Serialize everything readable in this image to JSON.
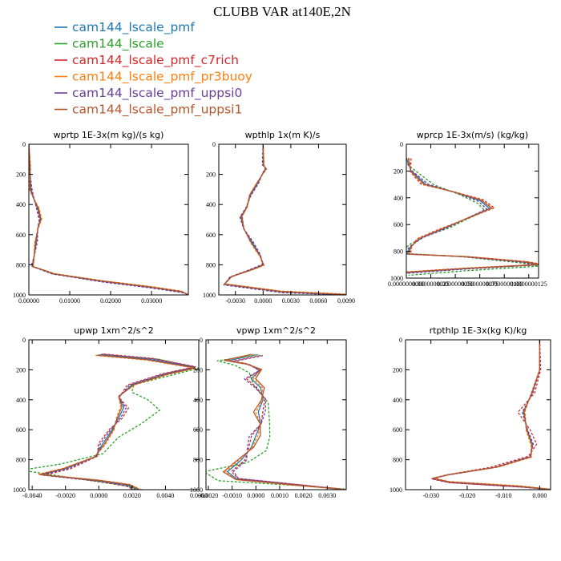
{
  "title": "CLUBB VAR at140E,2N",
  "series": [
    {
      "name": "cam144_lscale_pmf",
      "color": "#1f77b4",
      "dash": false
    },
    {
      "name": "cam144_lscale",
      "color": "#2ca02c",
      "dash": true
    },
    {
      "name": "cam144_lscale_pmf_c7rich",
      "color": "#d62728",
      "dash": true
    },
    {
      "name": "cam144_lscale_pmf_pr3buoy",
      "color": "#ff7f0e",
      "dash": true
    },
    {
      "name": "cam144_lscale_pmf_uppsi0",
      "color": "#6a3d9a",
      "dash": true
    },
    {
      "name": "cam144_lscale_pmf_uppsi1",
      "color": "#b5562b",
      "dash": false
    }
  ],
  "chart_data": [
    {
      "type": "line",
      "title": "wprtp  1E-3x(m kg)/(s kg)",
      "xlim": [
        0,
        0.039
      ],
      "ylim": [
        1000,
        0
      ],
      "y_inverted": true,
      "xticks": [
        0,
        0.01,
        0.02,
        0.03
      ],
      "xticklabels": [
        "0.00000",
        "0.01000",
        "0.02000",
        "0.03000"
      ],
      "yticks": [
        0,
        200,
        400,
        600,
        800,
        1000
      ],
      "profile": [
        [
          0,
          0
        ],
        [
          0.0002,
          150
        ],
        [
          0.0005,
          300
        ],
        [
          0.0012,
          360
        ],
        [
          0.0022,
          430
        ],
        [
          0.0028,
          500
        ],
        [
          0.0022,
          560
        ],
        [
          0.0018,
          650
        ],
        [
          0.0012,
          760
        ],
        [
          0.0008,
          810
        ],
        [
          0.006,
          860
        ],
        [
          0.018,
          910
        ],
        [
          0.03,
          950
        ],
        [
          0.0375,
          980
        ],
        [
          0.039,
          1000
        ]
      ],
      "perturb": [
        [
          0,
          0,
          0
        ],
        [
          0.0003,
          4,
          0
        ],
        [
          -0.0002,
          -3,
          0
        ],
        [
          0.0004,
          6,
          0
        ],
        [
          -0.0003,
          -5,
          0
        ],
        [
          0.0002,
          3,
          0
        ]
      ]
    },
    {
      "type": "line",
      "title": "wpthlp  1x(m K)/s",
      "xlim": [
        -0.0048,
        0.009
      ],
      "ylim": [
        1000,
        0
      ],
      "y_inverted": true,
      "xticks": [
        -0.003,
        0,
        0.003,
        0.006,
        0.009
      ],
      "xticklabels": [
        "-0.0030",
        "0.0000",
        "0.0030",
        "0.0060",
        "0.0090"
      ],
      "yticks": [
        0,
        200,
        400,
        600,
        800,
        1000
      ],
      "profile": [
        [
          0,
          0
        ],
        [
          0,
          140
        ],
        [
          0.0003,
          160
        ],
        [
          0,
          190
        ],
        [
          -0.0006,
          260
        ],
        [
          -0.0014,
          340
        ],
        [
          -0.0018,
          420
        ],
        [
          -0.0024,
          480
        ],
        [
          -0.0021,
          560
        ],
        [
          -0.0012,
          650
        ],
        [
          -0.0003,
          740
        ],
        [
          0,
          800
        ],
        [
          -0.0012,
          830
        ],
        [
          -0.0035,
          880
        ],
        [
          -0.0042,
          930
        ],
        [
          0.002,
          980
        ],
        [
          0.009,
          1000
        ]
      ],
      "perturb": [
        [
          0,
          0,
          0
        ],
        [
          0.0001,
          4,
          0
        ],
        [
          -0.0001,
          -3,
          0
        ],
        [
          0.00015,
          6,
          0
        ],
        [
          -0.0001,
          -5,
          0
        ],
        [
          0.0001,
          3,
          0
        ]
      ]
    },
    {
      "type": "line",
      "title": "wprcp  1E-3x(m/s) (kg/kg)",
      "xlim": [
        0,
        1.35e-08
      ],
      "ylim": [
        1000,
        0
      ],
      "y_inverted": true,
      "xticks": [
        0,
        2.5e-09,
        5e-09,
        7.5e-09,
        1e-08,
        1.25e-08
      ],
      "xticklabels": [
        "0.0000000000",
        "0.0000000025",
        "0.0000000050",
        "0.0000000075",
        "0.0000000100",
        "0.0000000125"
      ],
      "yticks": [
        0,
        200,
        400,
        600,
        800,
        1000
      ],
      "profile": [
        [
          0,
          100
        ],
        [
          5e-10,
          200
        ],
        [
          2e-09,
          300
        ],
        [
          5e-09,
          360
        ],
        [
          7.5e-09,
          420
        ],
        [
          8.5e-09,
          480
        ],
        [
          6e-09,
          560
        ],
        [
          3.5e-09,
          640
        ],
        [
          1.5e-09,
          700
        ],
        [
          5e-10,
          760
        ],
        [
          0,
          820
        ],
        [
          6e-09,
          840
        ],
        [
          1.2e-08,
          880
        ],
        [
          1.35e-08,
          900
        ],
        [
          6e-09,
          930
        ],
        [
          0,
          960
        ]
      ],
      "perturb": [
        [
          0,
          0,
          0
        ],
        [
          -8e-10,
          -20,
          0.25
        ],
        [
          5e-10,
          6,
          0
        ],
        [
          3e-10,
          4,
          0
        ],
        [
          -3e-10,
          -4,
          0
        ],
        [
          2e-10,
          3,
          0
        ]
      ]
    },
    {
      "type": "line",
      "title": "upwp  1xm^2/s^2",
      "xlim": [
        -0.0042,
        0.006
      ],
      "ylim": [
        1000,
        0
      ],
      "y_inverted": true,
      "xticks": [
        -0.004,
        -0.002,
        0,
        0.002,
        0.004,
        0.006
      ],
      "xticklabels": [
        "-0.0040",
        "-0.0020",
        "0.0000",
        "0.0020",
        "0.0040",
        "0.0060"
      ],
      "yticks": [
        0,
        200,
        400,
        600,
        800,
        1000
      ],
      "profile": [
        [
          0,
          100
        ],
        [
          0.003,
          130
        ],
        [
          0.0058,
          185
        ],
        [
          0.004,
          230
        ],
        [
          0.002,
          300
        ],
        [
          0.0012,
          380
        ],
        [
          0.0015,
          450
        ],
        [
          0.0012,
          520
        ],
        [
          0.0008,
          600
        ],
        [
          0.0002,
          700
        ],
        [
          -0.0002,
          780
        ],
        [
          -0.002,
          860
        ],
        [
          -0.0035,
          900
        ],
        [
          0,
          940
        ],
        [
          0.0018,
          970
        ],
        [
          0.0023,
          1000
        ]
      ],
      "perturb": [
        [
          0,
          0,
          0
        ],
        [
          0.0002,
          0,
          1.0
        ],
        [
          0.0003,
          -6,
          0
        ],
        [
          -0.0002,
          5,
          0
        ],
        [
          0.00015,
          -4,
          0
        ],
        [
          -0.00012,
          3,
          0
        ]
      ],
      "green_override": [
        [
          0,
          100
        ],
        [
          0.003,
          130
        ],
        [
          0.0052,
          190
        ],
        [
          0.0038,
          240
        ],
        [
          0.002,
          300
        ],
        [
          0.0018,
          350
        ],
        [
          0.0025,
          400
        ],
        [
          0.003,
          470
        ],
        [
          0.0022,
          560
        ],
        [
          0.0012,
          650
        ],
        [
          0.0002,
          760
        ],
        [
          -0.0022,
          830
        ],
        [
          -0.0042,
          870
        ],
        [
          -0.0015,
          920
        ],
        [
          0.0015,
          975
        ],
        [
          0.0024,
          1000
        ]
      ]
    },
    {
      "type": "line",
      "title": "vpwp  1xm^2/s^2",
      "xlim": [
        -0.0021,
        0.0038
      ],
      "ylim": [
        1000,
        0
      ],
      "y_inverted": true,
      "xticks": [
        -0.002,
        -0.001,
        0,
        0.001,
        0.002,
        0.003
      ],
      "xticklabels": [
        "-0.0020",
        "-0.0010",
        "0.0000",
        "0.0010",
        "0.0020",
        "0.0030"
      ],
      "yticks": [
        0,
        200,
        400,
        600,
        800,
        1000
      ],
      "profile": [
        [
          0,
          100
        ],
        [
          -0.0012,
          140
        ],
        [
          -0.0004,
          160
        ],
        [
          0.0002,
          200
        ],
        [
          -0.0002,
          260
        ],
        [
          0.0002,
          320
        ],
        [
          0.0003,
          400
        ],
        [
          0.0001,
          480
        ],
        [
          0.0002,
          560
        ],
        [
          0,
          640
        ],
        [
          -0.0002,
          720
        ],
        [
          -0.0006,
          800
        ],
        [
          -0.0012,
          880
        ],
        [
          -0.0008,
          930
        ],
        [
          0.0018,
          970
        ],
        [
          0.0037,
          1000
        ]
      ],
      "perturb": [
        [
          0,
          0,
          0
        ],
        [
          0.0001,
          0,
          0.9
        ],
        [
          0.0002,
          5,
          0
        ],
        [
          -0.0001,
          -4,
          0
        ],
        [
          0.0003,
          6,
          0
        ],
        [
          -0.0002,
          -3,
          0
        ]
      ],
      "green_override": [
        [
          0,
          100
        ],
        [
          -0.0015,
          140
        ],
        [
          -0.0008,
          170
        ],
        [
          -0.0002,
          220
        ],
        [
          0,
          300
        ],
        [
          0.0004,
          420
        ],
        [
          0.0005,
          560
        ],
        [
          0.0006,
          650
        ],
        [
          0.0004,
          740
        ],
        [
          -0.0004,
          820
        ],
        [
          -0.002,
          880
        ],
        [
          -0.0014,
          940
        ],
        [
          0.0018,
          975
        ],
        [
          0.0037,
          1000
        ]
      ]
    },
    {
      "type": "line",
      "title": "rtpthlp  1E-3x(kg K)/kg",
      "xlim": [
        -0.037,
        0.003
      ],
      "ylim": [
        1000,
        0
      ],
      "y_inverted": true,
      "xticks": [
        -0.03,
        -0.02,
        -0.01,
        0
      ],
      "xticklabels": [
        "-0.030",
        "-0.020",
        "-0.010",
        "0.000"
      ],
      "yticks": [
        0,
        200,
        400,
        600,
        800,
        1000
      ],
      "profile": [
        [
          0,
          0
        ],
        [
          0,
          200
        ],
        [
          -0.002,
          350
        ],
        [
          -0.0045,
          480
        ],
        [
          -0.0035,
          600
        ],
        [
          -0.002,
          700
        ],
        [
          -0.0025,
          780
        ],
        [
          -0.012,
          850
        ],
        [
          -0.025,
          900
        ],
        [
          -0.0295,
          925
        ],
        [
          -0.025,
          950
        ],
        [
          -0.005,
          980
        ],
        [
          0.003,
          1000
        ]
      ],
      "perturb": [
        [
          0,
          0,
          0
        ],
        [
          0.0002,
          3,
          0
        ],
        [
          -0.0015,
          -4,
          0
        ],
        [
          0.0005,
          5,
          0
        ],
        [
          -0.0003,
          -3,
          0
        ],
        [
          0.0002,
          2,
          0
        ]
      ]
    }
  ]
}
